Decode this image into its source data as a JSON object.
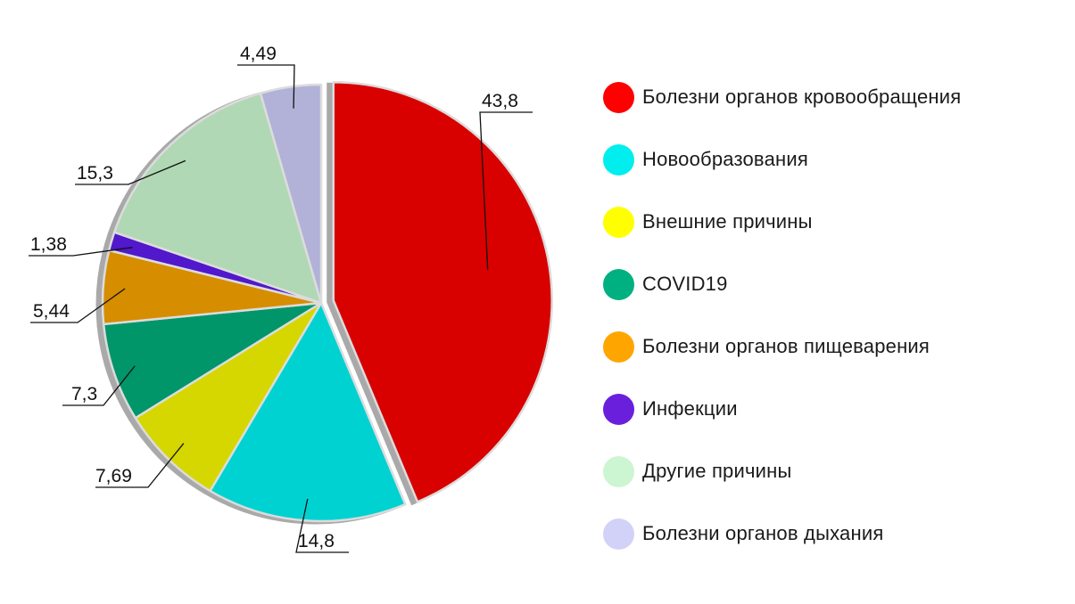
{
  "chart_data": {
    "type": "pie",
    "title": "",
    "decimal_separator": ",",
    "start_angle_deg": 0,
    "direction": "clockwise",
    "exploded_slice": 0,
    "legend_position": "right",
    "series": [
      {
        "name": "Болезни органов кровообращения",
        "value": 43.8,
        "label": "43,8",
        "color": "#d90000",
        "legend_color": "#ff0000"
      },
      {
        "name": "Новообразования",
        "value": 14.8,
        "label": "14,8",
        "color": "#00d2d2",
        "legend_color": "#00eeee"
      },
      {
        "name": "Внешние причины",
        "value": 7.69,
        "label": "7,69",
        "color": "#d6d600",
        "legend_color": "#ffff00"
      },
      {
        "name": "COVID19",
        "value": 7.3,
        "label": "7,3",
        "color": "#00966a",
        "legend_color": "#00b080"
      },
      {
        "name": "Болезни органов пищеварения",
        "value": 5.44,
        "label": "5,44",
        "color": "#d68d00",
        "legend_color": "#ffa500"
      },
      {
        "name": "Инфекции",
        "value": 1.38,
        "label": "1,38",
        "color": "#5118cc",
        "legend_color": "#6a1fdc"
      },
      {
        "name": "Другие причины",
        "value": 15.3,
        "label": "15,3",
        "color": "#b0d8b4",
        "legend_color": "#ccf5d2"
      },
      {
        "name": "Болезни органов дыхания",
        "value": 4.49,
        "label": "4,49",
        "color": "#b2b2d8",
        "legend_color": "#d2d2f8"
      }
    ]
  }
}
